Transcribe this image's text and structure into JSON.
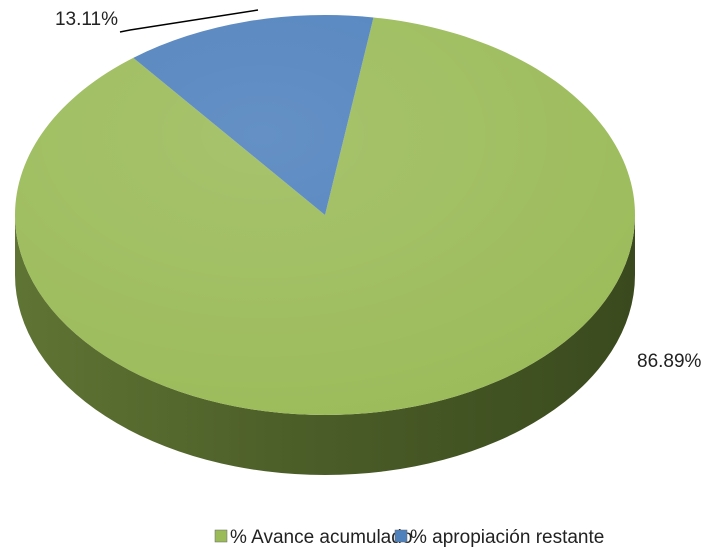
{
  "chart_data": {
    "type": "pie",
    "categories": [
      "% Avance acumulado",
      "% apropiación restante"
    ],
    "values": [
      86.89,
      13.11
    ],
    "value_labels": [
      "86.89%",
      "13.11%"
    ],
    "colors": [
      "#9bbb59",
      "#4f81bd"
    ]
  }
}
